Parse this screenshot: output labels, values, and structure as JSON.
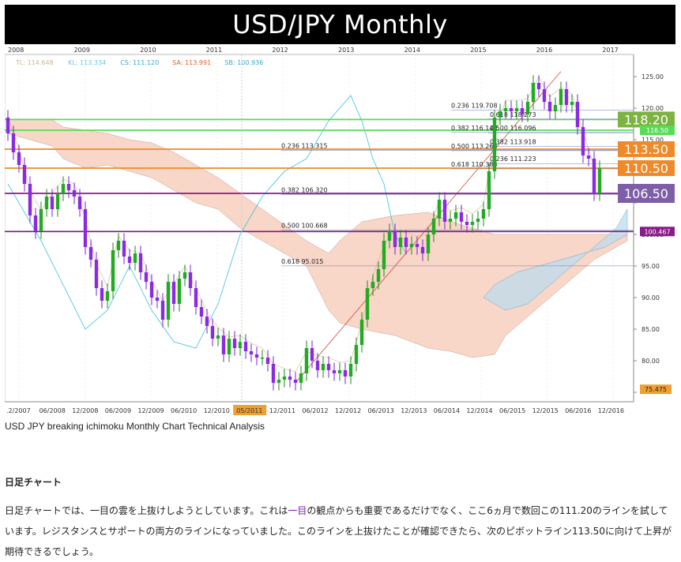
{
  "title": "USD/JPY Monthly",
  "caption": "USD JPY breaking ichimoku Monthly Chart Technical Analysis",
  "section_heading": "日足チャート",
  "paragraph": {
    "part1": "日足チャートでは、一目の雲を上抜けしようとしています。これは",
    "highlight": "一目",
    "part2": "の観点からも重要であるだけでなく、ここ6ヵ月で数回この111.20のラインを試しています。レジスタンスとサポートの両方のラインになっていました。このラインを上抜けたことが確認できたら、次のピボットライン113.50に向けて上昇が期待できるでしょう。"
  },
  "chart_data": {
    "type": "candlestick",
    "title": "USD/JPY Monthly",
    "indicator_legend": [
      {
        "label": "TL: 114.648",
        "color": "#c8b98a"
      },
      {
        "label": "KL: 113.334",
        "color": "#6cc6e0"
      },
      {
        "label": "CS: 111.120",
        "color": "#3aa6c8"
      },
      {
        "label": "SA: 113.991",
        "color": "#e06030"
      },
      {
        "label": "SB: 100.936",
        "color": "#3aa6c8"
      }
    ],
    "year_labels": [
      "2008",
      "2009",
      "2010",
      "2011",
      "2012",
      "2013",
      "2014",
      "2015",
      "2016",
      "2017"
    ],
    "x_tick_labels": [
      ".2/2007",
      "06/2008",
      "12/2008",
      "06/2009",
      "12/2009",
      "06/2010",
      "12/2010",
      "05/2011",
      "12/2011",
      "06/2012",
      "12/2012",
      "06/2013",
      "12/2013",
      "06/2014",
      "12/2014",
      "06/2015",
      "12/2015",
      "06/2016",
      "12/2016"
    ],
    "highlighted_x_label": "05/2011",
    "y_axis": {
      "ticks": [
        75,
        80,
        85,
        90,
        95,
        100,
        105,
        110,
        115,
        120,
        125
      ],
      "tick_labels": [
        "",
        "80.00",
        "85.00",
        "90.00",
        "95.00",
        "100.00",
        "",
        "",
        "115.00",
        "120.00",
        "125.00"
      ],
      "range": [
        73.5,
        128.5
      ]
    },
    "horizontal_levels": [
      {
        "value": 118.2,
        "label": "118.20",
        "bg": "#7cb342",
        "line": "#55dd55"
      },
      {
        "value": 116.5,
        "label": "116.50",
        "bg": "#55dd55",
        "line": "#55dd55"
      },
      {
        "value": 113.5,
        "label": "113.50",
        "bg": "#ee8a2a",
        "line": "#ee8a2a"
      },
      {
        "value": 110.5,
        "label": "110.50",
        "bg": "#ee8a2a",
        "line": "#ee8a2a"
      },
      {
        "value": 106.5,
        "label": "106.50",
        "bg": "#7e5ea6",
        "line": "#8a1a8a"
      },
      {
        "value": 100.467,
        "label": "100.467",
        "bg": "#8a1a8a",
        "line": "#7a1a7a"
      },
      {
        "value": 75.475,
        "label": "75.475",
        "bg": "#f0a030",
        "line": ""
      }
    ],
    "fib_long": [
      {
        "label": "0.236 113.315",
        "value": 113.315
      },
      {
        "label": "0.382 106.320",
        "value": 106.32
      },
      {
        "label": "0.500 100.668",
        "value": 100.668
      },
      {
        "label": "0.618 95.015",
        "value": 95.015
      }
    ],
    "fib_short": [
      {
        "label": "0.236 119.708",
        "value": 119.708
      },
      {
        "label": "0.382 116.144",
        "value": 116.144
      },
      {
        "label": "0.500 113.263",
        "value": 113.263
      },
      {
        "label": "0.618 110.383",
        "value": 110.383
      }
    ],
    "fib_recent": [
      {
        "label": "0.618 118.273",
        "value": 118.273
      },
      {
        "label": "0.500 116.096",
        "value": 116.096
      },
      {
        "label": "0.382 113.918",
        "value": 113.918
      },
      {
        "label": "0.236 111.223",
        "value": 111.223
      }
    ],
    "candles": [
      {
        "o": 118.5,
        "c": 116.0
      },
      {
        "o": 116.0,
        "c": 113.0
      },
      {
        "o": 113.0,
        "c": 111.0
      },
      {
        "o": 111.0,
        "c": 108.0
      },
      {
        "o": 108.0,
        "c": 103.0
      },
      {
        "o": 103.0,
        "c": 100.5
      },
      {
        "o": 100.5,
        "c": 104.0
      },
      {
        "o": 104.0,
        "c": 106.0
      },
      {
        "o": 106.0,
        "c": 104.0
      },
      {
        "o": 104.0,
        "c": 106.5
      },
      {
        "o": 106.5,
        "c": 108.0
      },
      {
        "o": 108.0,
        "c": 107.0
      },
      {
        "o": 107.0,
        "c": 106.0
      },
      {
        "o": 106.0,
        "c": 104.0
      },
      {
        "o": 104.0,
        "c": 98.0
      },
      {
        "o": 98.0,
        "c": 96.0
      },
      {
        "o": 96.0,
        "c": 91.5
      },
      {
        "o": 91.5,
        "c": 89.5
      },
      {
        "o": 89.5,
        "c": 91.0
      },
      {
        "o": 91.0,
        "c": 97.5
      },
      {
        "o": 97.5,
        "c": 99.0
      },
      {
        "o": 99.0,
        "c": 96.5
      },
      {
        "o": 96.5,
        "c": 95.5
      },
      {
        "o": 95.5,
        "c": 97.0
      },
      {
        "o": 97.0,
        "c": 94.0
      },
      {
        "o": 94.0,
        "c": 92.5
      },
      {
        "o": 92.5,
        "c": 90.0
      },
      {
        "o": 90.0,
        "c": 89.5
      },
      {
        "o": 89.5,
        "c": 86.5
      },
      {
        "o": 86.5,
        "c": 92.5
      },
      {
        "o": 92.5,
        "c": 89.0
      },
      {
        "o": 89.0,
        "c": 93.0
      },
      {
        "o": 93.0,
        "c": 94.0
      },
      {
        "o": 94.0,
        "c": 91.5
      },
      {
        "o": 91.5,
        "c": 88.5
      },
      {
        "o": 88.5,
        "c": 87.0
      },
      {
        "o": 87.0,
        "c": 85.5
      },
      {
        "o": 85.5,
        "c": 83.5
      },
      {
        "o": 83.5,
        "c": 84.0
      },
      {
        "o": 84.0,
        "c": 81.0
      },
      {
        "o": 81.0,
        "c": 83.5
      },
      {
        "o": 83.5,
        "c": 82.0
      },
      {
        "o": 82.0,
        "c": 83.0
      },
      {
        "o": 83.0,
        "c": 81.5
      },
      {
        "o": 81.5,
        "c": 81.0
      },
      {
        "o": 81.0,
        "c": 80.5
      },
      {
        "o": 80.5,
        "c": 80.5
      },
      {
        "o": 80.5,
        "c": 79.5
      },
      {
        "o": 79.5,
        "c": 76.5
      },
      {
        "o": 76.5,
        "c": 77.0
      },
      {
        "o": 77.0,
        "c": 77.5
      },
      {
        "o": 77.5,
        "c": 77.0
      },
      {
        "o": 77.0,
        "c": 76.5
      },
      {
        "o": 76.5,
        "c": 78.0
      },
      {
        "o": 78.0,
        "c": 82.0
      },
      {
        "o": 82.0,
        "c": 80.0
      },
      {
        "o": 80.0,
        "c": 78.5
      },
      {
        "o": 78.5,
        "c": 79.5
      },
      {
        "o": 79.5,
        "c": 78.5
      },
      {
        "o": 78.5,
        "c": 78.0
      },
      {
        "o": 78.0,
        "c": 78.5
      },
      {
        "o": 78.5,
        "c": 77.5
      },
      {
        "o": 77.5,
        "c": 79.5
      },
      {
        "o": 79.5,
        "c": 82.5
      },
      {
        "o": 82.5,
        "c": 86.5
      },
      {
        "o": 86.5,
        "c": 91.5
      },
      {
        "o": 91.5,
        "c": 92.5
      },
      {
        "o": 92.5,
        "c": 94.5
      },
      {
        "o": 94.5,
        "c": 99.0
      },
      {
        "o": 99.0,
        "c": 100.5
      },
      {
        "o": 100.5,
        "c": 98.0
      },
      {
        "o": 98.0,
        "c": 99.5
      },
      {
        "o": 99.5,
        "c": 98.0
      },
      {
        "o": 98.0,
        "c": 98.5
      },
      {
        "o": 98.5,
        "c": 98.0
      },
      {
        "o": 98.0,
        "c": 97.0
      },
      {
        "o": 97.0,
        "c": 100.0
      },
      {
        "o": 100.0,
        "c": 102.5
      },
      {
        "o": 102.5,
        "c": 105.5
      },
      {
        "o": 105.5,
        "c": 102.0
      },
      {
        "o": 102.0,
        "c": 102.5
      },
      {
        "o": 102.5,
        "c": 103.5
      },
      {
        "o": 103.5,
        "c": 102.0
      },
      {
        "o": 102.0,
        "c": 101.5
      },
      {
        "o": 101.5,
        "c": 102.0
      },
      {
        "o": 102.0,
        "c": 102.5
      },
      {
        "o": 102.5,
        "c": 104.0
      },
      {
        "o": 104.0,
        "c": 110.0
      },
      {
        "o": 110.0,
        "c": 118.5
      },
      {
        "o": 118.5,
        "c": 119.5
      },
      {
        "o": 119.5,
        "c": 120.0
      },
      {
        "o": 120.0,
        "c": 119.5
      },
      {
        "o": 119.5,
        "c": 120.0
      },
      {
        "o": 120.0,
        "c": 119.0
      },
      {
        "o": 119.0,
        "c": 121.0
      },
      {
        "o": 121.0,
        "c": 124.0
      },
      {
        "o": 124.0,
        "c": 123.0
      },
      {
        "o": 123.0,
        "c": 121.0
      },
      {
        "o": 121.0,
        "c": 119.5
      },
      {
        "o": 119.5,
        "c": 120.5
      },
      {
        "o": 120.5,
        "c": 123.0
      },
      {
        "o": 123.0,
        "c": 120.5
      },
      {
        "o": 120.5,
        "c": 121.0
      },
      {
        "o": 121.0,
        "c": 117.0
      },
      {
        "o": 117.0,
        "c": 112.5
      },
      {
        "o": 112.5,
        "c": 112.0
      },
      {
        "o": 112.0,
        "c": 106.5
      },
      {
        "o": 106.5,
        "c": 110.5
      }
    ]
  }
}
